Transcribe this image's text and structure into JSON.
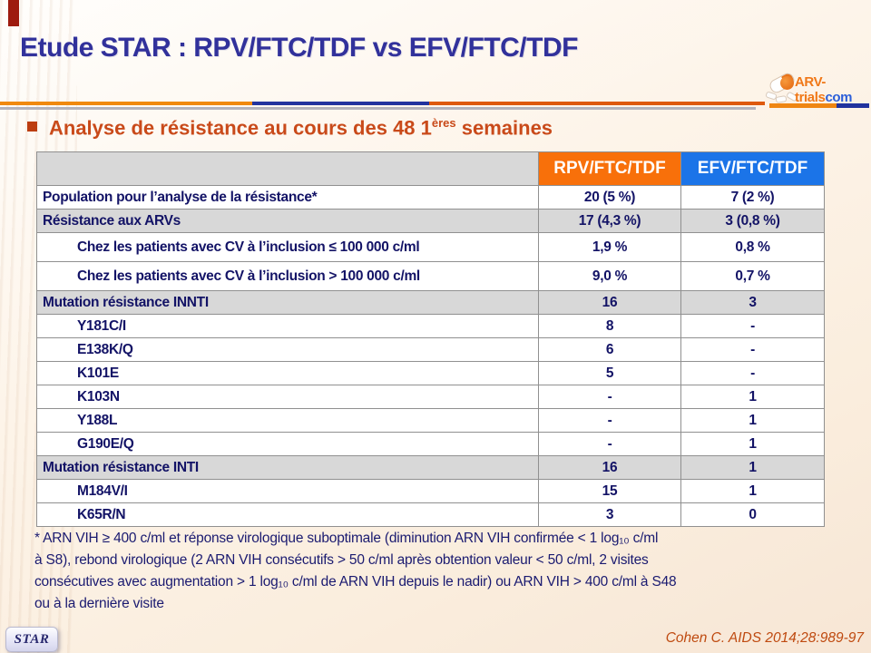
{
  "slide": {
    "title": "Etude STAR : RPV/FTC/TDF vs EFV/FTC/TDF",
    "heading": {
      "prefix": "Analyse de résistance au cours des 48 1",
      "sup": "ères",
      "suffix": " semaines"
    }
  },
  "logo": {
    "brand": "ARV-trials",
    "tld": "com"
  },
  "table": {
    "col_rpv": "RPV/FTC/TDF",
    "col_efv": "EFV/FTC/TDF",
    "rows": [
      {
        "label": "Population pour l’analyse de la résistance*",
        "rpv": "20 (5 %)",
        "efv": "7 (2 %)",
        "variant": "normal"
      },
      {
        "label": "Résistance aux ARVs",
        "rpv": "17 (4,3 %)",
        "efv": "3 (0,8 %)",
        "variant": "section"
      },
      {
        "label": "Chez les patients avec CV à l’inclusion ≤ 100 000 c/ml",
        "rpv": "1,9 %",
        "efv": "0,8 %",
        "variant": "indent"
      },
      {
        "label": "Chez les patients avec CV à l’inclusion > 100 000 c/ml",
        "rpv": "9,0 %",
        "efv": "0,7 %",
        "variant": "indent"
      },
      {
        "label": "Mutation résistance INNTI",
        "rpv": "16",
        "efv": "3",
        "variant": "section"
      },
      {
        "label": "Y181C/I",
        "rpv": "8",
        "efv": "-",
        "variant": "sub"
      },
      {
        "label": "E138K/Q",
        "rpv": "6",
        "efv": "-",
        "variant": "sub"
      },
      {
        "label": "K101E",
        "rpv": "5",
        "efv": "-",
        "variant": "sub"
      },
      {
        "label": "K103N",
        "rpv": "-",
        "efv": "1",
        "variant": "sub"
      },
      {
        "label": "Y188L",
        "rpv": "-",
        "efv": "1",
        "variant": "sub"
      },
      {
        "label": "G190E/Q",
        "rpv": "-",
        "efv": "1",
        "variant": "sub"
      },
      {
        "label": "Mutation résistance INTI",
        "rpv": "16",
        "efv": "1",
        "variant": "section"
      },
      {
        "label": "M184V/I",
        "rpv": "15",
        "efv": "1",
        "variant": "sub"
      },
      {
        "label": "K65R/N",
        "rpv": "3",
        "efv": "0",
        "variant": "sub"
      }
    ]
  },
  "footnote": "* ARN VIH ≥ 400 c/ml et réponse virologique suboptimale (diminution ARN VIH confirmée < 1 log₁₀ c/ml\nà S8), rebond virologique (2 ARN VIH consécutifs > 50 c/ml après obtention valeur < 50 c/ml, 2 visites\nconsécutives avec augmentation > 1 log₁₀ c/ml de ARN VIH depuis le nadir) ou ARN VIH > 400 c/ml à S48\nou à la dernière visite",
  "badge": "STAR",
  "reference": "Cohen C. AIDS 2014;28:989-97",
  "colors": {
    "header_rpv": "#f8700a",
    "header_efv": "#1b74e8",
    "section_row": "#d8d8d8",
    "title_navy": "#31319b",
    "table_navy": "#131366",
    "heading_orange": "#c94a1a",
    "reference_orange": "#bf4a10"
  }
}
